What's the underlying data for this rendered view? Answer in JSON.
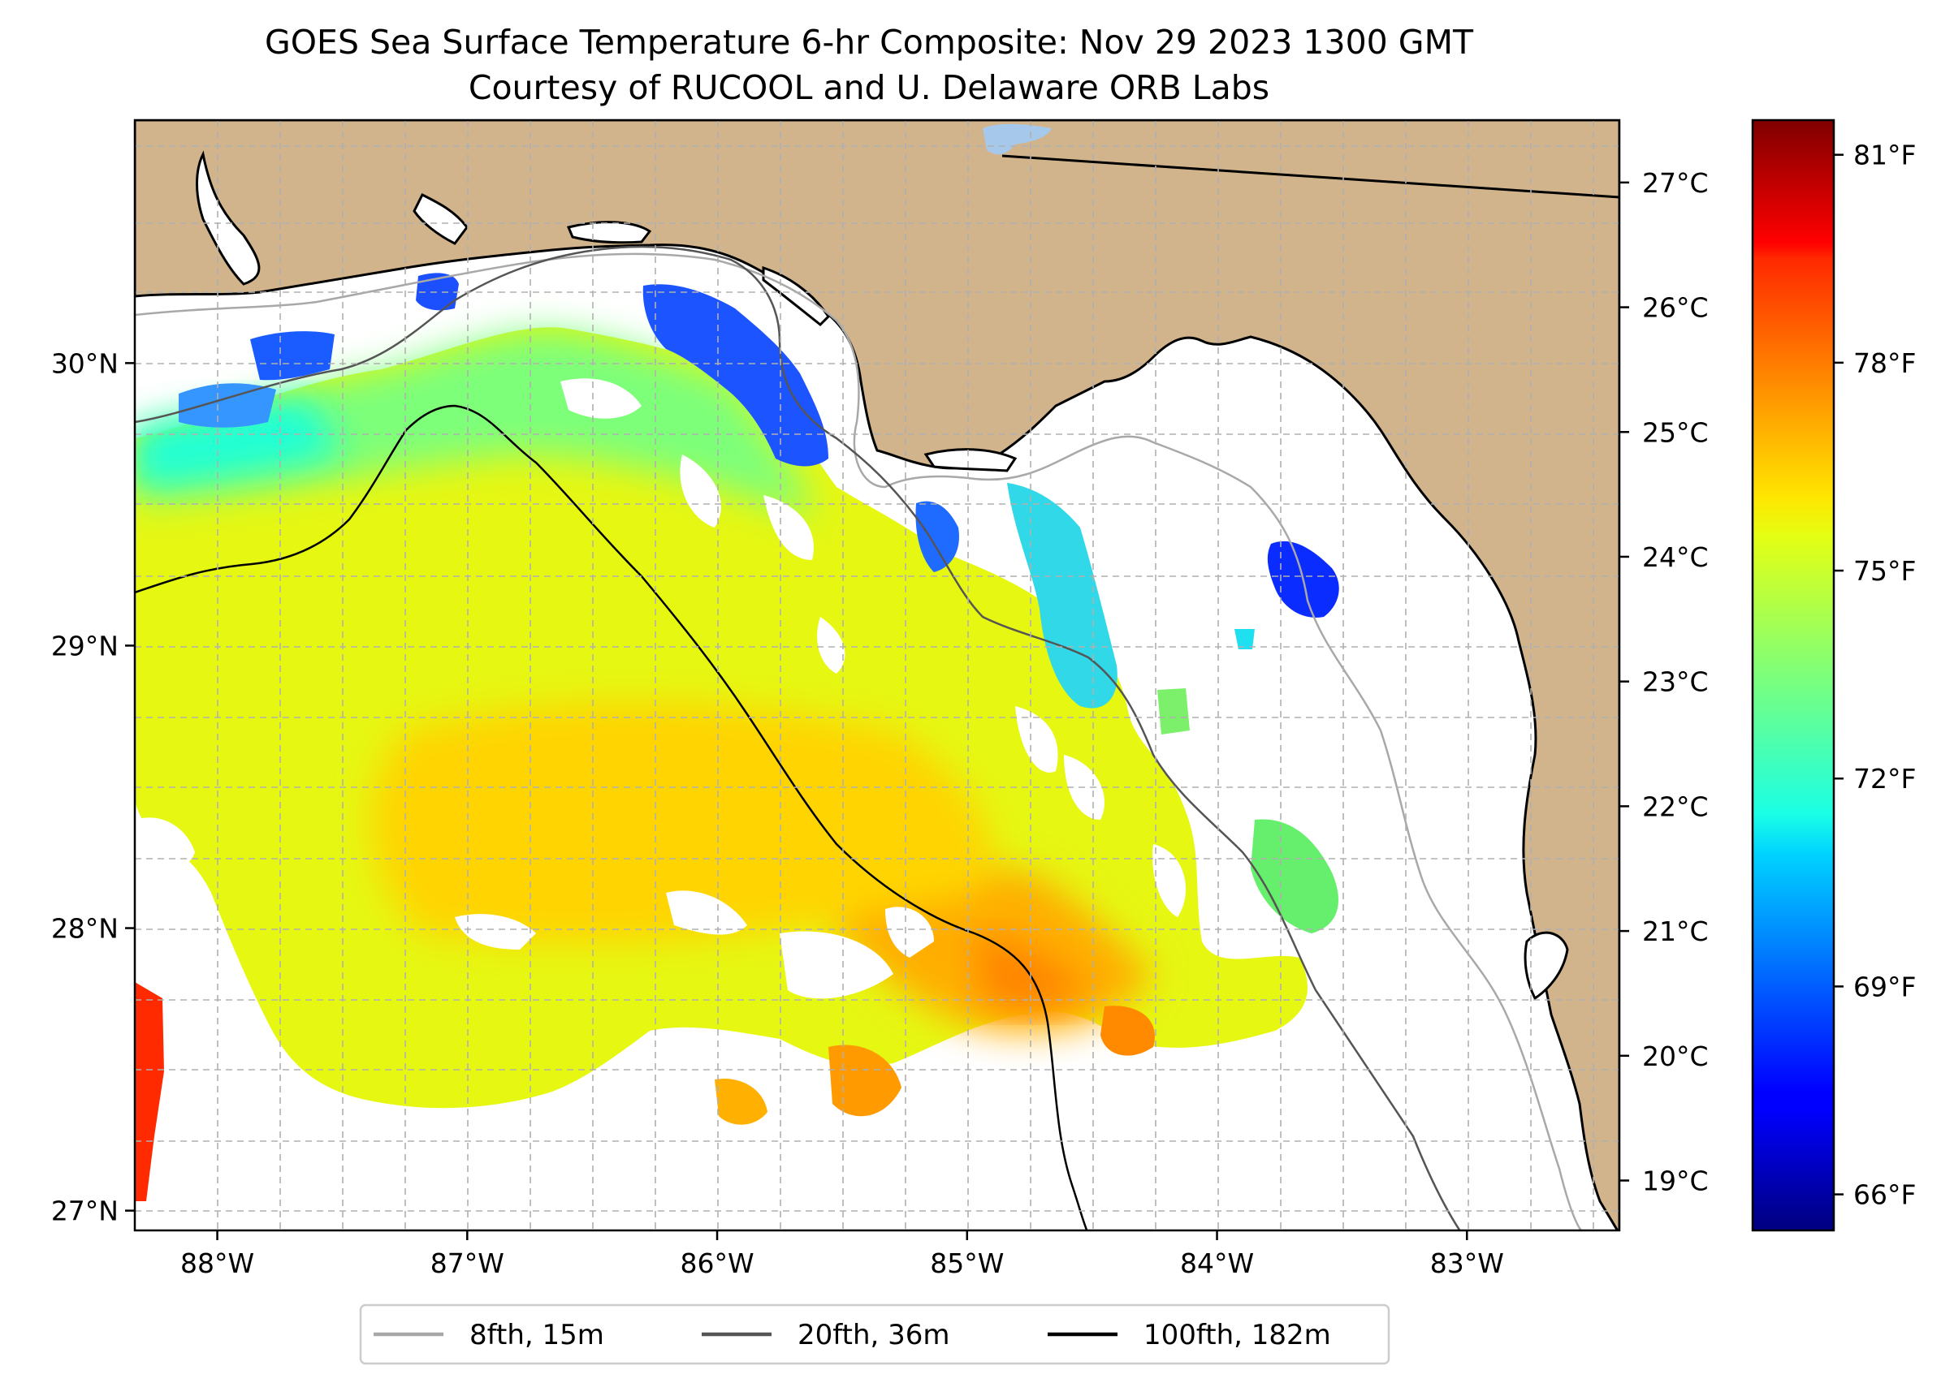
{
  "title": {
    "line1": "GOES Sea Surface Temperature 6-hr Composite: Nov 29 2023 1300 GMT",
    "line2": "Courtesy of RUCOOL and U. Delaware ORB Labs"
  },
  "map": {
    "lon_range": [
      -88.33,
      -82.39
    ],
    "lat_range": [
      26.93,
      30.86
    ],
    "lon_ticks": [
      {
        "value": -88,
        "label": "88°W"
      },
      {
        "value": -87,
        "label": "87°W"
      },
      {
        "value": -86,
        "label": "86°W"
      },
      {
        "value": -85,
        "label": "85°W"
      },
      {
        "value": -84,
        "label": "84°W"
      },
      {
        "value": -83,
        "label": "83°W"
      }
    ],
    "lat_ticks": [
      {
        "value": 27,
        "label": "27°N"
      },
      {
        "value": 28,
        "label": "28°N"
      },
      {
        "value": 29,
        "label": "29°N"
      },
      {
        "value": 30,
        "label": "30°N"
      }
    ],
    "colors": {
      "land": "#d2b48c",
      "ocean": "#ffffff",
      "lake": "#a6c8ea",
      "grid": "#b0b0b0"
    }
  },
  "legend": {
    "items": [
      {
        "label": "8fth, 15m",
        "color": "#a8a8a8"
      },
      {
        "label": "20fth, 36m",
        "color": "#555555"
      },
      {
        "label": "100fth, 182m",
        "color": "#000000"
      }
    ]
  },
  "colorbar": {
    "colormap": "jet",
    "celsius_range": [
      18.6,
      27.5
    ],
    "celsius_ticks": [
      {
        "value": 19,
        "label": "19°C"
      },
      {
        "value": 20,
        "label": "20°C"
      },
      {
        "value": 21,
        "label": "21°C"
      },
      {
        "value": 22,
        "label": "22°C"
      },
      {
        "value": 23,
        "label": "23°C"
      },
      {
        "value": 24,
        "label": "24°C"
      },
      {
        "value": 25,
        "label": "25°C"
      },
      {
        "value": 26,
        "label": "26°C"
      },
      {
        "value": 27,
        "label": "27°C"
      }
    ],
    "fahrenheit_ticks": [
      {
        "value": 66,
        "label": "66°F"
      },
      {
        "value": 69,
        "label": "69°F"
      },
      {
        "value": 72,
        "label": "72°F"
      },
      {
        "value": 75,
        "label": "75°F"
      },
      {
        "value": 78,
        "label": "78°F"
      },
      {
        "value": 81,
        "label": "81°F"
      }
    ]
  }
}
